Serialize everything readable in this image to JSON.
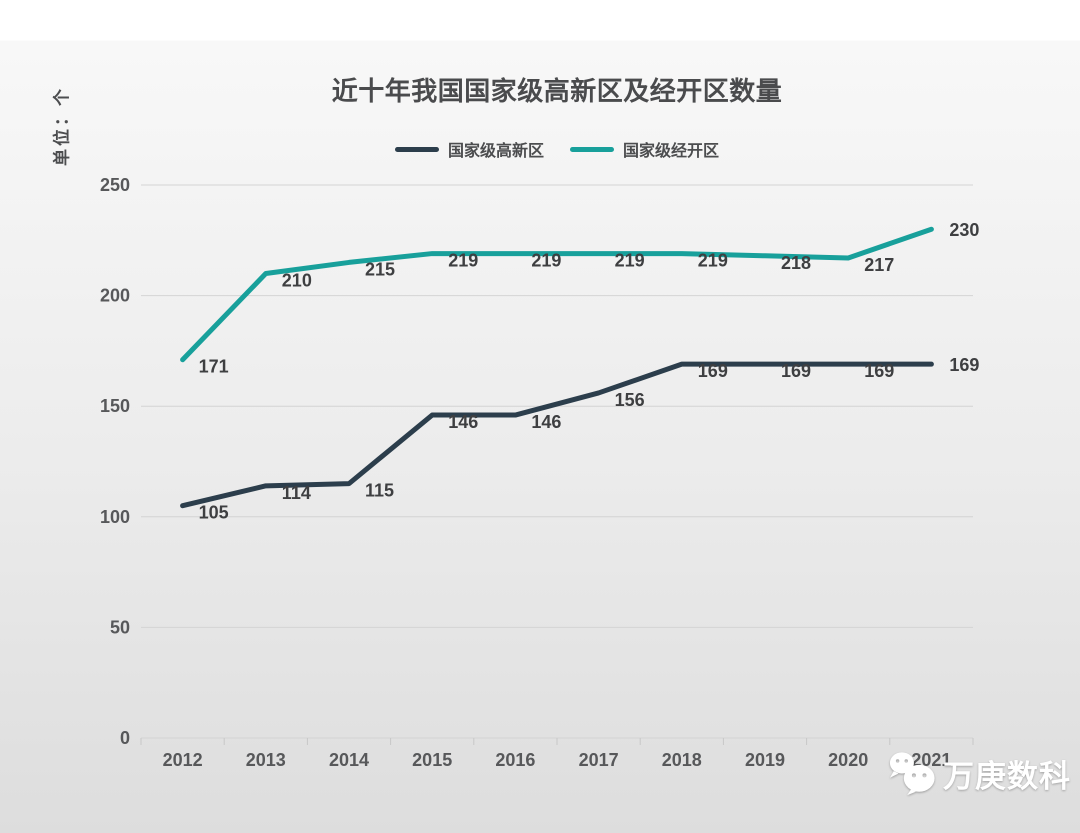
{
  "page": {
    "title": "近十年我国国家级高新区及经开区数量",
    "unit_label": "单位：个",
    "watermark": "万庚数科",
    "colors": {
      "series_gaoxinqu": "#2c3e4c",
      "series_jingkaiqu": "#18a09b",
      "gridline": "#d4d4d4",
      "axis_text": "#57585a",
      "data_label_text": "#3e3f41",
      "title_text": "#4a4b4d",
      "watermark_text": "#ffffff"
    }
  },
  "legend": {
    "items": [
      {
        "label": "国家级高新区",
        "color": "#2c3e4c"
      },
      {
        "label": "国家级经开区",
        "color": "#18a09b"
      }
    ]
  },
  "chart_data": {
    "type": "line",
    "title": "近十年我国国家级高新区及经开区数量",
    "categories": [
      "2012",
      "2013",
      "2014",
      "2015",
      "2016",
      "2017",
      "2018",
      "2019",
      "2020",
      "2021"
    ],
    "series": [
      {
        "name": "国家级高新区",
        "color": "#2c3e4c",
        "values": [
          105,
          114,
          115,
          146,
          146,
          156,
          169,
          169,
          169,
          169
        ]
      },
      {
        "name": "国家级经开区",
        "color": "#18a09b",
        "values": [
          171,
          210,
          215,
          219,
          219,
          219,
          219,
          218,
          217,
          230
        ]
      }
    ],
    "xlabel": "",
    "ylabel": "单位：个",
    "ylim": [
      0,
      250
    ],
    "yticks": [
      0,
      50,
      100,
      150,
      200,
      250
    ],
    "grid": true,
    "legend_position": "top",
    "data_labels": true
  }
}
